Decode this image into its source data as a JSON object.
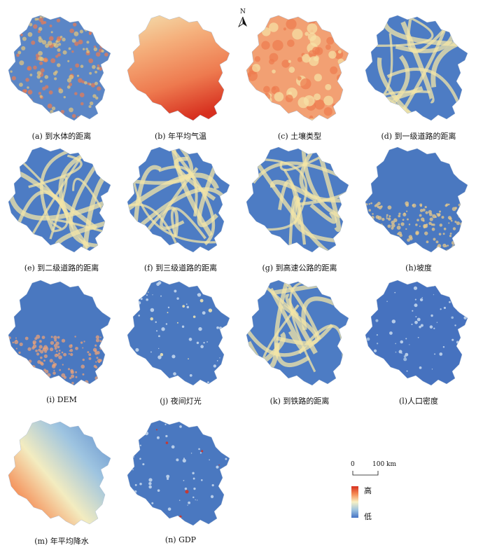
{
  "north_label": "N",
  "scale": {
    "zero": "0",
    "distance": "100 km"
  },
  "legend": {
    "high": "高",
    "low": "低"
  },
  "panels": [
    {
      "caption": "(a) 到水体的距离",
      "style": "noisy",
      "base": "#5b86c6",
      "accent": "#e8c77a"
    },
    {
      "caption": "(b) 年平均气温",
      "style": "gradient-warm",
      "base": "#f08a5b",
      "accent": "#d7301f"
    },
    {
      "caption": "(c) 土壤类型",
      "style": "patchy",
      "base": "#f2a073",
      "accent": "#f7e3a6"
    },
    {
      "caption": "(d) 到一级道路的距离",
      "style": "buffer",
      "base": "#4d7cc4",
      "accent": "#f3e6a7"
    },
    {
      "caption": "(e) 到二级道路的距离",
      "style": "buffer",
      "base": "#4d7cc4",
      "accent": "#f3e6a7"
    },
    {
      "caption": "(f) 到三级道路的距离",
      "style": "buffer",
      "base": "#4d7cc4",
      "accent": "#f3e6a7"
    },
    {
      "caption": "(g) 到高速公路的距离",
      "style": "buffer",
      "base": "#4d7cc4",
      "accent": "#f3e6a7"
    },
    {
      "caption": "(h)坡度",
      "style": "south-noise",
      "base": "#4a78c0",
      "accent": "#e9c98a"
    },
    {
      "caption": "(i) DEM",
      "style": "south-noise",
      "base": "#4a78c0",
      "accent": "#e9a27a"
    },
    {
      "caption": "(j) 夜间灯光",
      "style": "speckle",
      "base": "#4a78c0",
      "accent": "#f7e9b0"
    },
    {
      "caption": "(k) 到铁路的距离",
      "style": "buffer",
      "base": "#4d7cc4",
      "accent": "#f3e6a7"
    },
    {
      "caption": "(l)人口密度",
      "style": "speckle",
      "base": "#4672bf",
      "accent": "#a8c4e3"
    },
    {
      "caption": "(m) 年平均降水",
      "style": "gradient-rain",
      "base": "#5a86c6",
      "accent": "#d7301f"
    },
    {
      "caption": "(n) GDP",
      "style": "speckle",
      "base": "#4a78c0",
      "accent": "#d7301f"
    }
  ]
}
